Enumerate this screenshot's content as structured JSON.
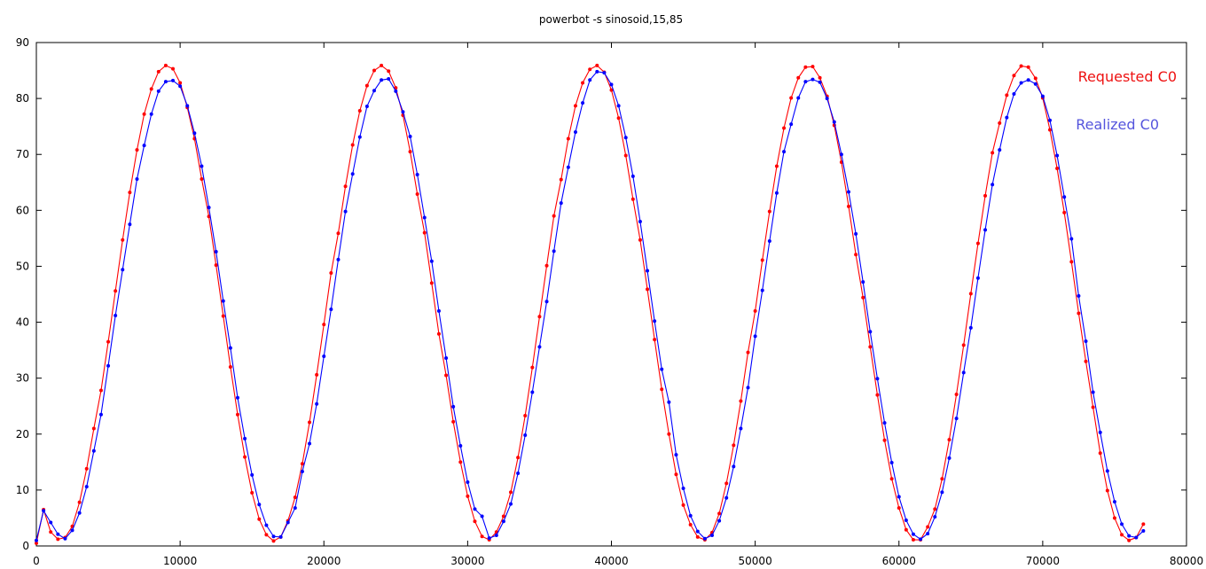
{
  "chart_data": {
    "type": "line",
    "title": "powerbot -s sinosoid,15,85",
    "xlabel": "",
    "ylabel": "",
    "xlim": [
      0,
      80000
    ],
    "ylim": [
      0,
      90
    ],
    "x_ticks": [
      0,
      10000,
      20000,
      30000,
      40000,
      50000,
      60000,
      70000,
      80000
    ],
    "y_ticks": [
      0,
      10,
      20,
      30,
      40,
      50,
      60,
      70,
      80,
      90
    ],
    "grid": false,
    "legend_position": "top-right",
    "series": [
      {
        "name": "Requested C0",
        "color": "#ff0000",
        "points": [
          [
            0,
            0.5
          ],
          [
            500,
            6.5
          ],
          [
            1000,
            2.5
          ],
          [
            1500,
            1.2
          ],
          [
            2000,
            1.5
          ],
          [
            2500,
            3.5
          ],
          [
            3000,
            7.8
          ],
          [
            3500,
            13.8
          ],
          [
            4000,
            21.0
          ],
          [
            4500,
            27.8
          ],
          [
            5000,
            36.5
          ],
          [
            5500,
            45.6
          ],
          [
            6000,
            54.7
          ],
          [
            6500,
            63.2
          ],
          [
            7000,
            70.8
          ],
          [
            7500,
            77.2
          ],
          [
            8000,
            81.7
          ],
          [
            8500,
            84.8
          ],
          [
            9000,
            85.9
          ],
          [
            9500,
            85.3
          ],
          [
            10000,
            82.8
          ],
          [
            10500,
            78.4
          ],
          [
            11000,
            72.8
          ],
          [
            11500,
            65.6
          ],
          [
            12000,
            58.9
          ],
          [
            12500,
            50.2
          ],
          [
            13000,
            41.1
          ],
          [
            13500,
            32.0
          ],
          [
            14000,
            23.5
          ],
          [
            14500,
            15.9
          ],
          [
            15000,
            9.5
          ],
          [
            15500,
            4.8
          ],
          [
            16000,
            2.0
          ],
          [
            16500,
            0.9
          ],
          [
            17000,
            1.6
          ],
          [
            17500,
            4.5
          ],
          [
            18000,
            8.7
          ],
          [
            18500,
            14.7
          ],
          [
            19000,
            22.1
          ],
          [
            19500,
            30.6
          ],
          [
            20000,
            39.6
          ],
          [
            20500,
            48.8
          ],
          [
            21000,
            55.9
          ],
          [
            21500,
            64.3
          ],
          [
            22000,
            71.7
          ],
          [
            22500,
            77.8
          ],
          [
            23000,
            82.3
          ],
          [
            23500,
            85.0
          ],
          [
            24000,
            85.9
          ],
          [
            24500,
            84.9
          ],
          [
            25000,
            81.9
          ],
          [
            25500,
            77.0
          ],
          [
            26000,
            70.5
          ],
          [
            26500,
            62.9
          ],
          [
            27000,
            56.0
          ],
          [
            27500,
            47.0
          ],
          [
            28000,
            37.9
          ],
          [
            28500,
            30.5
          ],
          [
            29000,
            22.2
          ],
          [
            29500,
            15.0
          ],
          [
            30000,
            8.9
          ],
          [
            30500,
            4.4
          ],
          [
            31000,
            1.7
          ],
          [
            31500,
            1.1
          ],
          [
            32000,
            2.5
          ],
          [
            32500,
            5.3
          ],
          [
            33000,
            9.6
          ],
          [
            33500,
            15.8
          ],
          [
            34000,
            23.3
          ],
          [
            34500,
            31.9
          ],
          [
            35000,
            41.0
          ],
          [
            35500,
            50.1
          ],
          [
            36000,
            59.0
          ],
          [
            36500,
            65.5
          ],
          [
            37000,
            72.8
          ],
          [
            37500,
            78.7
          ],
          [
            38000,
            82.8
          ],
          [
            38500,
            85.2
          ],
          [
            39000,
            85.9
          ],
          [
            39500,
            84.7
          ],
          [
            40000,
            81.5
          ],
          [
            40500,
            76.5
          ],
          [
            41000,
            69.8
          ],
          [
            41500,
            62.0
          ],
          [
            42000,
            54.7
          ],
          [
            42500,
            45.9
          ],
          [
            43000,
            36.9
          ],
          [
            43500,
            28.0
          ],
          [
            44000,
            20.0
          ],
          [
            44500,
            12.8
          ],
          [
            45000,
            7.3
          ],
          [
            45500,
            3.8
          ],
          [
            46000,
            1.6
          ],
          [
            46500,
            1.1
          ],
          [
            47000,
            2.4
          ],
          [
            47500,
            5.8
          ],
          [
            48000,
            11.2
          ],
          [
            48500,
            18.0
          ],
          [
            49000,
            25.9
          ],
          [
            49500,
            34.6
          ],
          [
            50000,
            42.0
          ],
          [
            50500,
            51.1
          ],
          [
            51000,
            59.8
          ],
          [
            51500,
            67.9
          ],
          [
            52000,
            74.7
          ],
          [
            52500,
            80.1
          ],
          [
            53000,
            83.7
          ],
          [
            53500,
            85.6
          ],
          [
            54000,
            85.7
          ],
          [
            54500,
            83.7
          ],
          [
            55000,
            80.4
          ],
          [
            55500,
            75.2
          ],
          [
            56000,
            68.6
          ],
          [
            56500,
            60.7
          ],
          [
            57000,
            52.1
          ],
          [
            57500,
            44.4
          ],
          [
            58000,
            35.6
          ],
          [
            58500,
            27.0
          ],
          [
            59000,
            18.9
          ],
          [
            59500,
            12.0
          ],
          [
            60000,
            6.8
          ],
          [
            60500,
            2.9
          ],
          [
            61000,
            1.1
          ],
          [
            61500,
            1.1
          ],
          [
            62000,
            3.4
          ],
          [
            62500,
            6.6
          ],
          [
            63000,
            12.0
          ],
          [
            63500,
            19.0
          ],
          [
            64000,
            27.1
          ],
          [
            64500,
            35.9
          ],
          [
            65000,
            45.1
          ],
          [
            65500,
            54.1
          ],
          [
            66000,
            62.6
          ],
          [
            66500,
            70.3
          ],
          [
            67000,
            75.6
          ],
          [
            67500,
            80.6
          ],
          [
            68000,
            84.1
          ],
          [
            68500,
            85.8
          ],
          [
            69000,
            85.6
          ],
          [
            69500,
            83.6
          ],
          [
            70000,
            80.1
          ],
          [
            70500,
            74.4
          ],
          [
            71000,
            67.5
          ],
          [
            71500,
            59.6
          ],
          [
            72000,
            50.8
          ],
          [
            72500,
            41.6
          ],
          [
            73000,
            33.0
          ],
          [
            73500,
            24.8
          ],
          [
            74000,
            16.6
          ],
          [
            74500,
            9.9
          ],
          [
            75000,
            5.0
          ],
          [
            75500,
            2.0
          ],
          [
            76000,
            1.0
          ],
          [
            76500,
            1.5
          ],
          [
            77000,
            3.9
          ]
        ]
      },
      {
        "name": "Realized C0",
        "color": "#0000ff",
        "points": [
          [
            0,
            1.0
          ],
          [
            500,
            6.3
          ],
          [
            1000,
            4.2
          ],
          [
            1500,
            2.1
          ],
          [
            2000,
            1.3
          ],
          [
            2500,
            2.8
          ],
          [
            3000,
            5.9
          ],
          [
            3500,
            10.6
          ],
          [
            4000,
            17.0
          ],
          [
            4500,
            23.5
          ],
          [
            5000,
            32.2
          ],
          [
            5500,
            41.2
          ],
          [
            6000,
            49.4
          ],
          [
            6500,
            57.5
          ],
          [
            7000,
            65.6
          ],
          [
            7500,
            71.6
          ],
          [
            8000,
            77.2
          ],
          [
            8500,
            81.3
          ],
          [
            9000,
            83.0
          ],
          [
            9500,
            83.2
          ],
          [
            10000,
            82.2
          ],
          [
            10500,
            78.7
          ],
          [
            11000,
            73.8
          ],
          [
            11500,
            67.9
          ],
          [
            12000,
            60.5
          ],
          [
            12500,
            52.6
          ],
          [
            13000,
            43.8
          ],
          [
            13500,
            35.4
          ],
          [
            14000,
            26.5
          ],
          [
            14500,
            19.2
          ],
          [
            15000,
            12.7
          ],
          [
            15500,
            7.4
          ],
          [
            16000,
            3.7
          ],
          [
            16500,
            1.7
          ],
          [
            17000,
            1.6
          ],
          [
            17500,
            4.2
          ],
          [
            18000,
            6.8
          ],
          [
            18500,
            13.3
          ],
          [
            19000,
            18.3
          ],
          [
            19500,
            25.4
          ],
          [
            20000,
            33.9
          ],
          [
            20500,
            42.3
          ],
          [
            21000,
            51.2
          ],
          [
            21500,
            59.8
          ],
          [
            22000,
            66.5
          ],
          [
            22500,
            73.1
          ],
          [
            23000,
            78.6
          ],
          [
            23500,
            81.4
          ],
          [
            24000,
            83.3
          ],
          [
            24500,
            83.5
          ],
          [
            25000,
            81.3
          ],
          [
            25500,
            77.6
          ],
          [
            26000,
            73.2
          ],
          [
            26500,
            66.4
          ],
          [
            27000,
            58.7
          ],
          [
            27500,
            50.9
          ],
          [
            28000,
            42.0
          ],
          [
            28500,
            33.6
          ],
          [
            29000,
            24.9
          ],
          [
            29500,
            17.9
          ],
          [
            30000,
            11.4
          ],
          [
            30500,
            6.6
          ],
          [
            31000,
            5.3
          ],
          [
            31500,
            1.4
          ],
          [
            32000,
            1.9
          ],
          [
            32500,
            4.4
          ],
          [
            33000,
            7.5
          ],
          [
            33500,
            13.0
          ],
          [
            34000,
            19.8
          ],
          [
            34500,
            27.5
          ],
          [
            35000,
            35.6
          ],
          [
            35500,
            43.7
          ],
          [
            36000,
            52.7
          ],
          [
            36500,
            61.3
          ],
          [
            37000,
            67.7
          ],
          [
            37500,
            74.0
          ],
          [
            38000,
            79.2
          ],
          [
            38500,
            83.3
          ],
          [
            39000,
            84.8
          ],
          [
            39500,
            84.6
          ],
          [
            40000,
            82.5
          ],
          [
            40500,
            78.7
          ],
          [
            41000,
            73.0
          ],
          [
            41500,
            66.1
          ],
          [
            42000,
            58.0
          ],
          [
            42500,
            49.2
          ],
          [
            43000,
            40.2
          ],
          [
            43500,
            31.6
          ],
          [
            44000,
            25.7
          ],
          [
            44500,
            16.3
          ],
          [
            45000,
            10.3
          ],
          [
            45500,
            5.4
          ],
          [
            46000,
            2.6
          ],
          [
            46500,
            1.3
          ],
          [
            47000,
            1.9
          ],
          [
            47500,
            4.5
          ],
          [
            48000,
            8.6
          ],
          [
            48500,
            14.2
          ],
          [
            49000,
            21.0
          ],
          [
            49500,
            28.3
          ],
          [
            50000,
            37.5
          ],
          [
            50500,
            45.7
          ],
          [
            51000,
            54.5
          ],
          [
            51500,
            63.1
          ],
          [
            52000,
            70.5
          ],
          [
            52500,
            75.4
          ],
          [
            53000,
            80.1
          ],
          [
            53500,
            83.0
          ],
          [
            54000,
            83.4
          ],
          [
            54500,
            82.9
          ],
          [
            55000,
            80.0
          ],
          [
            55500,
            75.8
          ],
          [
            56000,
            70.0
          ],
          [
            56500,
            63.3
          ],
          [
            57000,
            55.8
          ],
          [
            57500,
            47.2
          ],
          [
            58000,
            38.3
          ],
          [
            58500,
            29.9
          ],
          [
            59000,
            22.0
          ],
          [
            59500,
            14.9
          ],
          [
            60000,
            8.8
          ],
          [
            60500,
            4.6
          ],
          [
            61000,
            2.1
          ],
          [
            61500,
            1.2
          ],
          [
            62000,
            2.2
          ],
          [
            62500,
            5.2
          ],
          [
            63000,
            9.6
          ],
          [
            63500,
            15.7
          ],
          [
            64000,
            22.8
          ],
          [
            64500,
            31.0
          ],
          [
            65000,
            39.0
          ],
          [
            65500,
            47.9
          ],
          [
            66000,
            56.5
          ],
          [
            66500,
            64.6
          ],
          [
            67000,
            70.8
          ],
          [
            67500,
            76.6
          ],
          [
            68000,
            80.8
          ],
          [
            68500,
            82.8
          ],
          [
            69000,
            83.3
          ],
          [
            69500,
            82.6
          ],
          [
            70000,
            80.4
          ],
          [
            70500,
            76.1
          ],
          [
            71000,
            69.8
          ],
          [
            71500,
            62.4
          ],
          [
            72000,
            54.9
          ],
          [
            72500,
            44.7
          ],
          [
            73000,
            36.6
          ],
          [
            73500,
            27.5
          ],
          [
            74000,
            20.3
          ],
          [
            74500,
            13.4
          ],
          [
            75000,
            7.9
          ],
          [
            75500,
            3.9
          ],
          [
            76000,
            1.8
          ],
          [
            76500,
            1.5
          ],
          [
            77000,
            2.7
          ]
        ]
      }
    ]
  }
}
